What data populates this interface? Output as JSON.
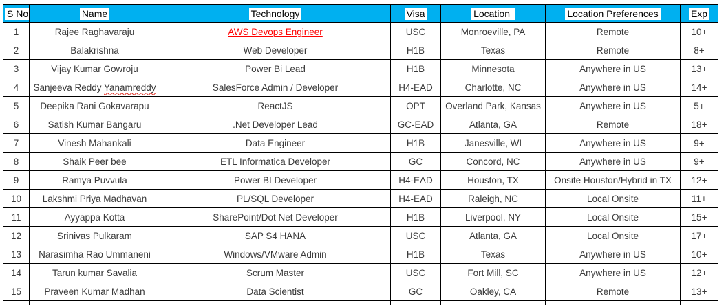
{
  "table": {
    "header_bg": "#00B0F0",
    "header_highlight": "#FFFFFF",
    "link_color": "#FF0000",
    "columns": [
      {
        "key": "sno",
        "label": "S No"
      },
      {
        "key": "name",
        "label": "Name"
      },
      {
        "key": "technology",
        "label": "Technology"
      },
      {
        "key": "visa",
        "label": "Visa"
      },
      {
        "key": "location",
        "label": "Location "
      },
      {
        "key": "preference",
        "label": "Location Preferences"
      },
      {
        "key": "exp",
        "label": "Exp"
      }
    ],
    "rows": [
      {
        "sno": "1",
        "name": "Rajee Raghavaraju",
        "technology": "AWS Devops Engineer",
        "link": true,
        "visa": "USC",
        "location": "Monroeville, PA",
        "preference": "Remote",
        "exp": "10+"
      },
      {
        "sno": "2",
        "name": "Balakrishna",
        "technology": "Web Developer",
        "visa": "H1B",
        "location": "Texas",
        "preference": "Remote",
        "exp": "8+"
      },
      {
        "sno": "3",
        "name": "Vijay Kumar Gowroju",
        "technology": "Power Bi Lead",
        "visa": "H1B",
        "location": "Minnesota",
        "preference": "Anywhere in US",
        "exp": "13+"
      },
      {
        "sno": "4",
        "name": "Sanjeeva Reddy Yanamreddy",
        "technology": "SalesForce Admin / Developer",
        "misspelled": "Yanamreddy",
        "visa": "H4-EAD",
        "location": "Charlotte, NC",
        "preference": "Anywhere in US",
        "exp": "14+"
      },
      {
        "sno": "5",
        "name": "Deepika Rani Gokavarapu",
        "technology": "ReactJS",
        "visa": "OPT",
        "location": "Overland Park, Kansas",
        "preference": "Anywhere in US",
        "exp": "5+"
      },
      {
        "sno": "6",
        "name": "Satish Kumar Bangaru",
        "technology": ".Net Developer Lead",
        "visa": "GC-EAD",
        "location": "Atlanta, GA",
        "preference": "Remote",
        "exp": "18+"
      },
      {
        "sno": "7",
        "name": "Vinesh Mahankali",
        "technology": "Data Engineer",
        "visa": "H1B",
        "location": "Janesville, WI",
        "preference": "Anywhere in US",
        "exp": "9+"
      },
      {
        "sno": "8",
        "name": "Shaik Peer bee",
        "technology": "ETL Informatica Developer",
        "visa": "GC",
        "location": "Concord, NC",
        "preference": "Anywhere in US",
        "exp": "9+"
      },
      {
        "sno": "9",
        "name": "Ramya Puvvula",
        "technology": "Power BI Developer",
        "visa": "H4-EAD",
        "location": "Houston, TX",
        "preference": "Onsite Houston/Hybrid in TX",
        "exp": "12+"
      },
      {
        "sno": "10",
        "name": "Lakshmi Priya Madhavan",
        "technology": "PL/SQL Developer",
        "visa": "H4-EAD",
        "location": "Raleigh, NC",
        "preference": "Local Onsite",
        "exp": "11+"
      },
      {
        "sno": "11",
        "name": "Ayyappa Kotta",
        "technology": "SharePoint/Dot Net Developer",
        "visa": "H1B",
        "location": "Liverpool, NY",
        "preference": "Local Onsite",
        "exp": "15+"
      },
      {
        "sno": "12",
        "name": "Srinivas Pulkaram",
        "technology": "SAP S4 HANA",
        "visa": "USC",
        "location": "Atlanta, GA",
        "preference": "Local Onsite",
        "exp": "17+"
      },
      {
        "sno": "13",
        "name": "Narasimha Rao Ummaneni",
        "technology": "Windows/VMware Admin",
        "visa": "H1B",
        "location": "Texas",
        "preference": "Anywhere in US",
        "exp": "10+"
      },
      {
        "sno": "14",
        "name": "Tarun kumar Savalia",
        "technology": "Scrum Master",
        "visa": "USC",
        "location": "Fort Mill, SC",
        "preference": "Anywhere in US",
        "exp": "12+"
      },
      {
        "sno": "15",
        "name": "Praveen Kumar Madhan",
        "technology": "Data Scientist",
        "visa": "GC",
        "location": "Oakley, CA",
        "preference": "Remote",
        "exp": "13+"
      }
    ]
  }
}
